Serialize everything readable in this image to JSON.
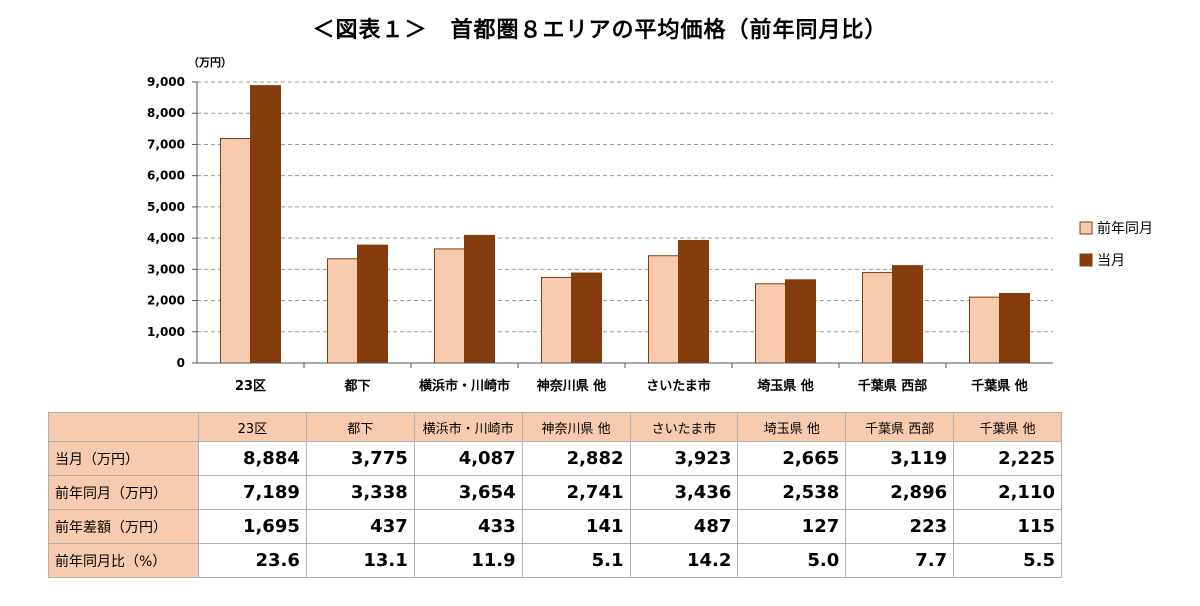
{
  "title": "＜図表１＞　首都圏８エリアの平均価格（前年同月比）",
  "chart_data": {
    "type": "bar",
    "unit_label": "（万円）",
    "categories": [
      "23区",
      "都下",
      "横浜市・川崎市",
      "神奈川県 他",
      "さいたま市",
      "埼玉県 他",
      "千葉県 西部",
      "千葉県 他"
    ],
    "series": [
      {
        "name": "前年同月",
        "color": "#f9cbae",
        "values": [
          7189,
          3338,
          3654,
          2741,
          3436,
          2538,
          2896,
          2110
        ]
      },
      {
        "name": "当月",
        "color": "#843c0c",
        "values": [
          8884,
          3775,
          4087,
          2882,
          3923,
          2665,
          3119,
          2225
        ]
      }
    ],
    "ylim": [
      0,
      9000
    ],
    "yticks": [
      "0",
      "1,000",
      "2,000",
      "3,000",
      "4,000",
      "5,000",
      "6,000",
      "7,000",
      "8,000",
      "9,000"
    ],
    "grid": true,
    "legend_position": "right"
  },
  "table": {
    "headers": [
      "23区",
      "都下",
      "横浜市・川崎市",
      "神奈川県 他",
      "さいたま市",
      "埼玉県 他",
      "千葉県 西部",
      "千葉県 他"
    ],
    "rows": [
      {
        "label": "当月（万円）",
        "cells": [
          "8,884",
          "3,775",
          "4,087",
          "2,882",
          "3,923",
          "2,665",
          "3,119",
          "2,225"
        ]
      },
      {
        "label": "前年同月（万円）",
        "cells": [
          "7,189",
          "3,338",
          "3,654",
          "2,741",
          "3,436",
          "2,538",
          "2,896",
          "2,110"
        ]
      },
      {
        "label": "前年差額（万円）",
        "cells": [
          "1,695",
          "437",
          "433",
          "141",
          "487",
          "127",
          "223",
          "115"
        ]
      },
      {
        "label": "前年同月比（%）",
        "cells": [
          "23.6",
          "13.1",
          "11.9",
          "5.1",
          "14.2",
          "5.0",
          "7.7",
          "5.5"
        ]
      }
    ]
  }
}
